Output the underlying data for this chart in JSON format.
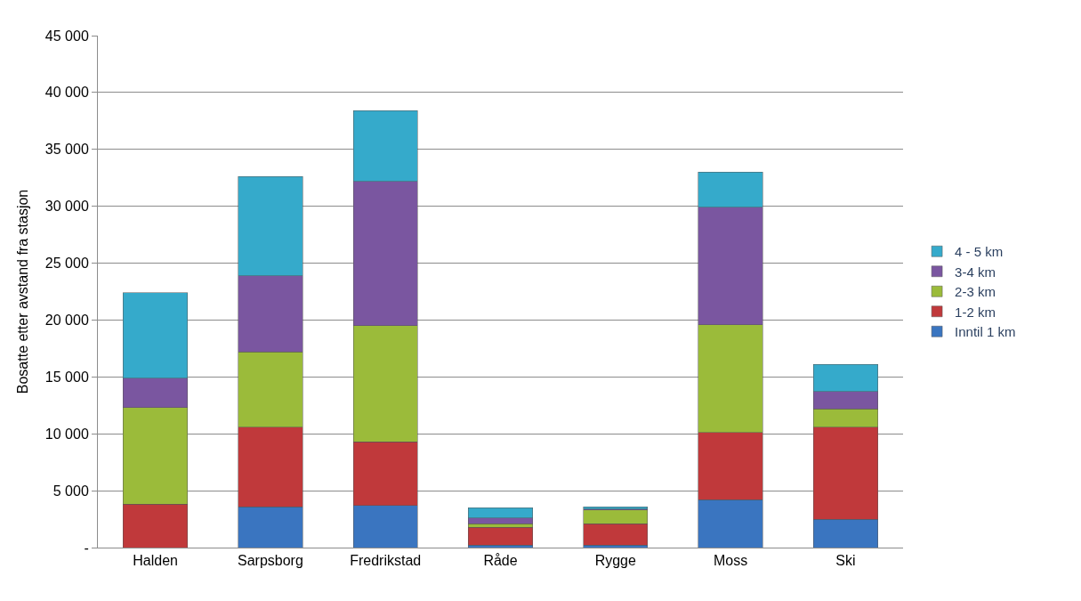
{
  "chart_data": {
    "type": "bar",
    "stacked": true,
    "ylabel": "Bosatte etter avstand fra stasjon",
    "categories": [
      "Halden",
      "Sarpsborg",
      "Fredrikstad",
      "Råde",
      "Rygge",
      "Moss",
      "Ski"
    ],
    "series": [
      {
        "name": "Inntil 1 km",
        "color": "#3a75c0",
        "values": [
          0,
          3600,
          3700,
          200,
          200,
          4200,
          2500
        ]
      },
      {
        "name": "1-2 km",
        "color": "#c0393b",
        "values": [
          3800,
          7000,
          5600,
          1600,
          1900,
          5900,
          8100
        ]
      },
      {
        "name": "2-3 km",
        "color": "#9bbb3a",
        "values": [
          8500,
          6600,
          10200,
          300,
          1200,
          9500,
          1600
        ]
      },
      {
        "name": "3-4 km",
        "color": "#7a56a0",
        "values": [
          2600,
          6700,
          12700,
          500,
          100,
          10300,
          1500
        ]
      },
      {
        "name": "4 - 5 km",
        "color": "#35aacb",
        "values": [
          7500,
          8700,
          6200,
          900,
          200,
          3100,
          2400
        ]
      }
    ],
    "ylim": [
      0,
      45000
    ],
    "yticks": [
      {
        "value": 0,
        "label": "-"
      },
      {
        "value": 5000,
        "label": "5 000"
      },
      {
        "value": 10000,
        "label": "10 000"
      },
      {
        "value": 15000,
        "label": "15 000"
      },
      {
        "value": 20000,
        "label": "20 000"
      },
      {
        "value": 25000,
        "label": "25 000"
      },
      {
        "value": 30000,
        "label": "30 000"
      },
      {
        "value": 35000,
        "label": "35 000"
      },
      {
        "value": 40000,
        "label": "40 000"
      },
      {
        "value": 45000,
        "label": "45 000"
      }
    ],
    "grid": "y",
    "legend": "right"
  }
}
